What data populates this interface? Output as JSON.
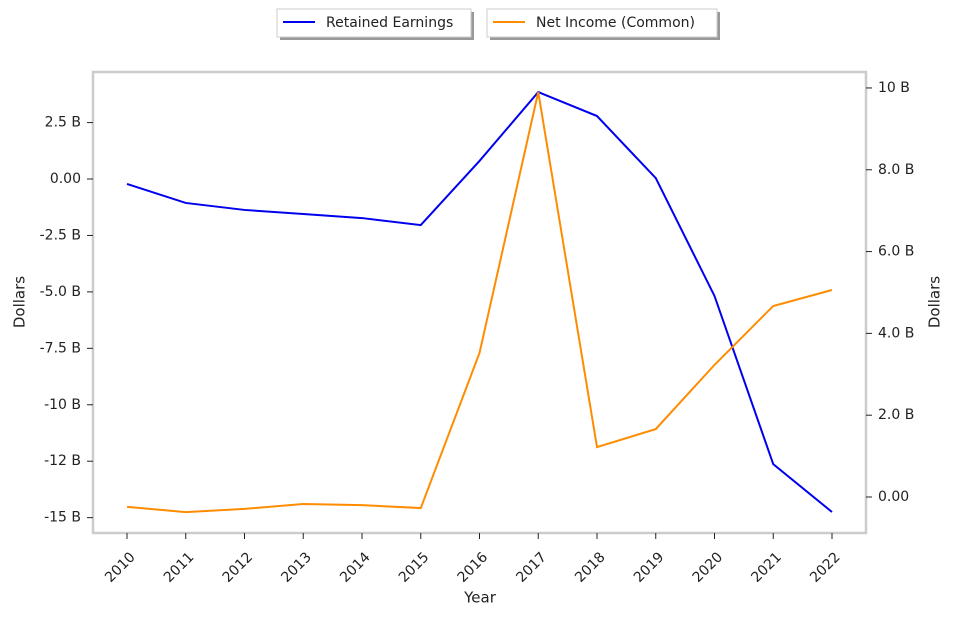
{
  "chart_data": {
    "type": "line",
    "x_label": "Year",
    "y_label": "Dollars",
    "y2_label": "Dollars",
    "categories": [
      "2010",
      "2011",
      "2012",
      "2013",
      "2014",
      "2015",
      "2016",
      "2017",
      "2018",
      "2019",
      "2020",
      "2021",
      "2022"
    ],
    "series": [
      {
        "name": "Retained Earnings",
        "color": "#0000ee",
        "values": [
          -0.22,
          -1.06,
          -1.37,
          -1.55,
          -1.73,
          -2.04,
          0.8,
          3.85,
          2.79,
          0.04,
          -5.18,
          -12.63,
          -14.75
        ]
      },
      {
        "name": "Net Income (Common)",
        "color": "#ff8c00",
        "axis": "y2",
        "values": [
          -0.24,
          -0.37,
          -0.29,
          -0.17,
          -0.2,
          -0.27,
          3.52,
          9.9,
          1.22,
          1.66,
          3.23,
          4.67,
          5.06
        ]
      }
    ],
    "ylim": [
      -15.68,
      4.74
    ],
    "yticks": [
      {
        "value": 2.5,
        "label": "2.5 B"
      },
      {
        "value": 0,
        "label": "0.00"
      },
      {
        "value": -2.5,
        "label": "-2.5 B"
      },
      {
        "value": -5,
        "label": "-5.0 B"
      },
      {
        "value": -7.5,
        "label": "-7.5 B"
      },
      {
        "value": -10,
        "label": "-10 B"
      },
      {
        "value": -12.5,
        "label": "-12 B"
      },
      {
        "value": -15,
        "label": "-15 B"
      }
    ],
    "y2lim": [
      -0.88,
      10.39
    ],
    "y2ticks": [
      {
        "value": 10,
        "label": "10 B"
      },
      {
        "value": 8,
        "label": "8.0 B"
      },
      {
        "value": 6,
        "label": "6.0 B"
      },
      {
        "value": 4,
        "label": "4.0 B"
      },
      {
        "value": 2,
        "label": "2.0 B"
      },
      {
        "value": 0,
        "label": "0.00"
      }
    ],
    "grid": false,
    "legend": "top"
  }
}
